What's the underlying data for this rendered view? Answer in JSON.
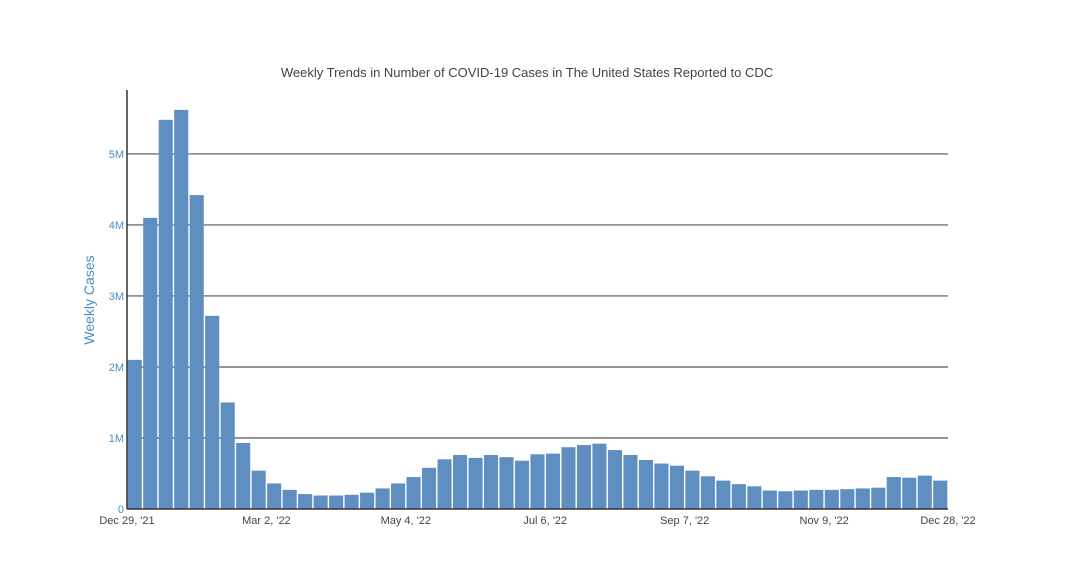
{
  "chart_data": {
    "type": "bar",
    "title": "Weekly Trends in Number of COVID-19 Cases in The United States Reported to CDC",
    "xlabel": "",
    "ylabel": "Weekly Cases",
    "ylim": [
      0,
      5900000
    ],
    "y_ticks": [
      {
        "value": 0,
        "label": "0"
      },
      {
        "value": 1000000,
        "label": "1M"
      },
      {
        "value": 2000000,
        "label": "2M"
      },
      {
        "value": 3000000,
        "label": "3M"
      },
      {
        "value": 4000000,
        "label": "4M"
      },
      {
        "value": 5000000,
        "label": "5M"
      }
    ],
    "x_ticks": [
      {
        "index": 0,
        "label": "Dec 29, '21"
      },
      {
        "index": 9,
        "label": "Mar 2, '22"
      },
      {
        "index": 18,
        "label": "May 4, '22"
      },
      {
        "index": 27,
        "label": "Jul 6, '22"
      },
      {
        "index": 36,
        "label": "Sep 7, '22"
      },
      {
        "index": 45,
        "label": "Nov 9, '22"
      },
      {
        "index": 52,
        "label": "Dec 28, '22"
      }
    ],
    "values": [
      2100000,
      4100000,
      5480000,
      5620000,
      4420000,
      2720000,
      1500000,
      930000,
      540000,
      360000,
      270000,
      210000,
      190000,
      190000,
      200000,
      230000,
      290000,
      360000,
      450000,
      580000,
      700000,
      760000,
      720000,
      760000,
      730000,
      680000,
      770000,
      780000,
      870000,
      900000,
      920000,
      830000,
      760000,
      690000,
      640000,
      610000,
      540000,
      460000,
      400000,
      350000,
      320000,
      260000,
      250000,
      260000,
      270000,
      270000,
      280000,
      290000,
      300000,
      450000,
      440000,
      470000,
      400000
    ],
    "bar_color": "#5f8fc0",
    "grid": true,
    "legend": "none"
  }
}
